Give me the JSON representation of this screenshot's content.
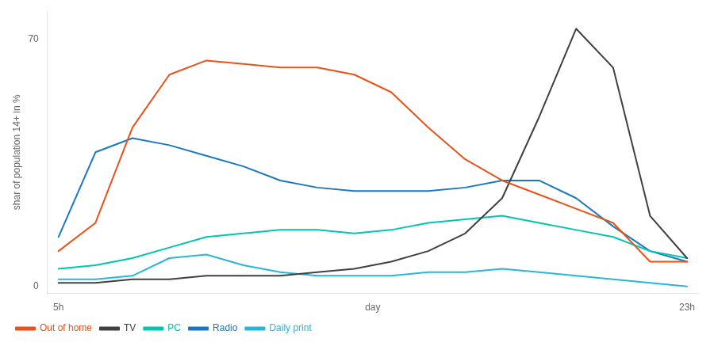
{
  "chart_data": {
    "type": "line",
    "ylabel": "shar of population 14+ in %",
    "x": [
      0,
      1,
      2,
      3,
      4,
      5,
      6,
      7,
      8,
      9,
      10,
      11,
      12,
      13,
      14,
      15,
      16,
      17
    ],
    "xlim": [
      -0.3,
      17.3
    ],
    "xticks": [
      {
        "value": 0,
        "label": "5h"
      },
      {
        "value": 8.5,
        "label": "day"
      },
      {
        "value": 17,
        "label": "23h"
      }
    ],
    "ylim": [
      -2,
      78
    ],
    "yticks": [
      0,
      70
    ],
    "grid": false,
    "legend": "bottom",
    "series": [
      {
        "name": "Out of home",
        "color": "#e8531a",
        "values": [
          10,
          18,
          45,
          60,
          64,
          63,
          62,
          62,
          60,
          55,
          45,
          36,
          30,
          26,
          22,
          18,
          7,
          7
        ]
      },
      {
        "name": "TV",
        "color": "#404040",
        "values": [
          1,
          1,
          2,
          2,
          3,
          3,
          3,
          4,
          5,
          7,
          10,
          15,
          25,
          48,
          73,
          62,
          20,
          8
        ]
      },
      {
        "name": "PC",
        "color": "#00c5b0",
        "values": [
          5,
          6,
          8,
          11,
          14,
          15,
          16,
          16,
          15,
          16,
          18,
          19,
          20,
          18,
          16,
          14,
          10,
          8
        ]
      },
      {
        "name": "Radio",
        "color": "#1a78c2",
        "values": [
          14,
          38,
          42,
          40,
          37,
          34,
          30,
          28,
          27,
          27,
          27,
          28,
          30,
          30,
          25,
          17,
          10,
          7
        ]
      },
      {
        "name": "Daily print",
        "color": "#29b6d8",
        "values": [
          2,
          2,
          3,
          8,
          9,
          6,
          4,
          3,
          3,
          3,
          4,
          4,
          5,
          4,
          3,
          2,
          1,
          0
        ]
      }
    ]
  }
}
